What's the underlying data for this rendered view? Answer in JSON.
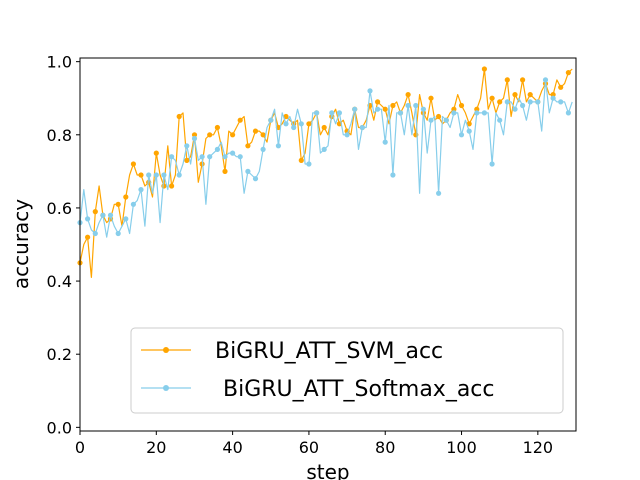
{
  "chart_data": {
    "type": "line",
    "title": "",
    "xlabel": "step",
    "ylabel": "accuracy",
    "xlim": [
      0,
      130
    ],
    "ylim": [
      -0.01,
      1.01
    ],
    "xticks": [
      0,
      20,
      40,
      60,
      80,
      100,
      120
    ],
    "xtick_labels": [
      "0",
      "20",
      "40",
      "60",
      "80",
      "100",
      "120"
    ],
    "yticks": [
      0.0,
      0.2,
      0.4,
      0.6,
      0.8,
      1.0
    ],
    "ytick_labels": [
      "0.0",
      "0.2",
      "0.4",
      "0.6",
      "0.8",
      "1.0"
    ],
    "grid": false,
    "legend_position": "lower-right",
    "marker_every": 2,
    "x": [
      0,
      1,
      2,
      3,
      4,
      5,
      6,
      7,
      8,
      9,
      10,
      11,
      12,
      13,
      14,
      15,
      16,
      17,
      18,
      19,
      20,
      21,
      22,
      23,
      24,
      25,
      26,
      27,
      28,
      29,
      30,
      31,
      32,
      33,
      34,
      35,
      36,
      37,
      38,
      39,
      40,
      41,
      42,
      43,
      44,
      45,
      46,
      47,
      48,
      49,
      50,
      51,
      52,
      53,
      54,
      55,
      56,
      57,
      58,
      59,
      60,
      61,
      62,
      63,
      64,
      65,
      66,
      67,
      68,
      69,
      70,
      71,
      72,
      73,
      74,
      75,
      76,
      77,
      78,
      79,
      80,
      81,
      82,
      83,
      84,
      85,
      86,
      87,
      88,
      89,
      90,
      91,
      92,
      93,
      94,
      95,
      96,
      97,
      98,
      99,
      100,
      101,
      102,
      103,
      104,
      105,
      106,
      107,
      108,
      109,
      110,
      111,
      112,
      113,
      114,
      115,
      116,
      117,
      118,
      119,
      120,
      121,
      122,
      123,
      124,
      125,
      126,
      127,
      128,
      129
    ],
    "series": [
      {
        "name": "BiGRU_ATT_SVM_acc",
        "color": "#FFA500",
        "values": [
          0.45,
          0.5,
          0.52,
          0.41,
          0.59,
          0.66,
          0.58,
          0.56,
          0.57,
          0.61,
          0.61,
          0.55,
          0.63,
          0.69,
          0.72,
          0.69,
          0.69,
          0.66,
          0.67,
          0.63,
          0.75,
          0.69,
          0.66,
          0.77,
          0.66,
          0.69,
          0.85,
          0.86,
          0.73,
          0.74,
          0.8,
          0.67,
          0.72,
          0.79,
          0.8,
          0.8,
          0.82,
          0.77,
          0.7,
          0.81,
          0.8,
          0.82,
          0.84,
          0.85,
          0.77,
          0.78,
          0.81,
          0.81,
          0.8,
          0.78,
          0.84,
          0.86,
          0.82,
          0.83,
          0.85,
          0.84,
          0.83,
          0.84,
          0.73,
          0.75,
          0.83,
          0.84,
          0.86,
          0.8,
          0.82,
          0.8,
          0.85,
          0.87,
          0.83,
          0.84,
          0.81,
          0.8,
          0.87,
          0.82,
          0.82,
          0.84,
          0.88,
          0.84,
          0.89,
          0.88,
          0.87,
          0.83,
          0.88,
          0.89,
          0.86,
          0.88,
          0.91,
          0.86,
          0.8,
          0.91,
          0.86,
          0.84,
          0.9,
          0.84,
          0.85,
          0.83,
          0.84,
          0.86,
          0.87,
          0.91,
          0.88,
          0.86,
          0.83,
          0.85,
          0.87,
          0.9,
          0.98,
          0.87,
          0.9,
          0.86,
          0.89,
          0.9,
          0.95,
          0.85,
          0.91,
          0.89,
          0.95,
          0.89,
          0.91,
          0.9,
          0.89,
          0.92,
          0.94,
          0.91,
          0.91,
          0.95,
          0.93,
          0.94,
          0.97,
          0.98
        ]
      },
      {
        "name": "BiGRU_ATT_Softmax_acc",
        "color": "#87CEEB",
        "values": [
          0.56,
          0.65,
          0.57,
          0.54,
          0.53,
          0.56,
          0.58,
          0.52,
          0.58,
          0.55,
          0.53,
          0.55,
          0.57,
          0.53,
          0.61,
          0.62,
          0.65,
          0.55,
          0.69,
          0.64,
          0.69,
          0.56,
          0.69,
          0.65,
          0.74,
          0.73,
          0.69,
          0.72,
          0.77,
          0.72,
          0.79,
          0.73,
          0.74,
          0.61,
          0.74,
          0.75,
          0.76,
          0.78,
          0.74,
          0.75,
          0.75,
          0.74,
          0.74,
          0.64,
          0.7,
          0.69,
          0.68,
          0.7,
          0.76,
          0.82,
          0.84,
          0.87,
          0.77,
          0.86,
          0.83,
          0.85,
          0.82,
          0.87,
          0.83,
          0.72,
          0.72,
          0.86,
          0.86,
          0.75,
          0.76,
          0.77,
          0.86,
          0.83,
          0.86,
          0.8,
          0.8,
          0.83,
          0.87,
          0.76,
          0.82,
          0.82,
          0.92,
          0.86,
          0.87,
          0.87,
          0.78,
          0.88,
          0.69,
          0.86,
          0.86,
          0.8,
          0.88,
          0.8,
          0.88,
          0.64,
          0.87,
          0.75,
          0.84,
          0.85,
          0.64,
          0.85,
          0.84,
          0.82,
          0.86,
          0.86,
          0.8,
          0.84,
          0.81,
          0.76,
          0.86,
          0.86,
          0.86,
          0.86,
          0.72,
          0.86,
          0.84,
          0.8,
          0.89,
          0.89,
          0.87,
          0.9,
          0.88,
          0.84,
          0.89,
          0.89,
          0.89,
          0.81,
          0.95,
          0.86,
          0.9,
          0.89,
          0.89,
          0.89,
          0.86,
          0.89
        ]
      }
    ]
  }
}
